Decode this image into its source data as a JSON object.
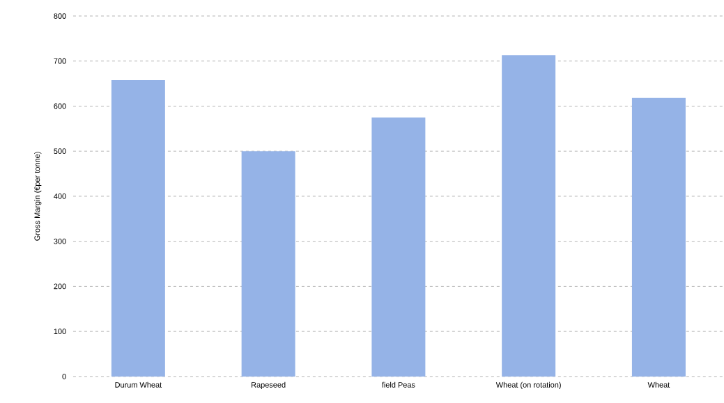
{
  "chart_data": {
    "type": "bar",
    "ylabel": "Gross Margin (€per tonne)",
    "categories": [
      "Durum Wheat",
      "Rapeseed",
      "field Peas",
      "Wheat (on rotation)",
      "Wheat"
    ],
    "values": [
      658,
      500,
      575,
      713,
      618
    ],
    "color": "#95b3e7",
    "ylim": [
      0,
      800
    ],
    "yticks": [
      0,
      100,
      200,
      300,
      400,
      500,
      600,
      700,
      800
    ],
    "grid": "y"
  }
}
